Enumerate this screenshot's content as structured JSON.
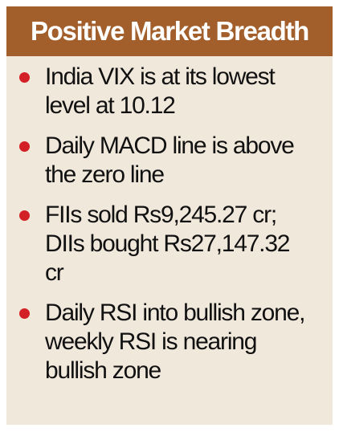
{
  "header": {
    "title": "Positive Market Breadth"
  },
  "colors": {
    "header_bg": "#a35f2b",
    "card_bg": "#f1e8dc",
    "bullet": "#d31f26",
    "text": "#111111"
  },
  "items": [
    {
      "lines": [
        "India VIX is at its lowest",
        "level at 10.12"
      ],
      "icon": "red-dot-bullet-icon"
    },
    {
      "lines": [
        "Daily MACD line is above",
        "the zero line"
      ],
      "icon": "red-dot-bullet-icon"
    },
    {
      "lines": [
        "FIIs sold Rs9,245.27 cr;",
        "DIIs bought Rs27,147.32",
        "cr"
      ],
      "icon": "red-dot-bullet-icon"
    },
    {
      "lines": [
        "Daily RSI into bullish zone,",
        "weekly RSI is nearing",
        "bullish zone"
      ],
      "icon": "red-dot-bullet-icon"
    }
  ]
}
